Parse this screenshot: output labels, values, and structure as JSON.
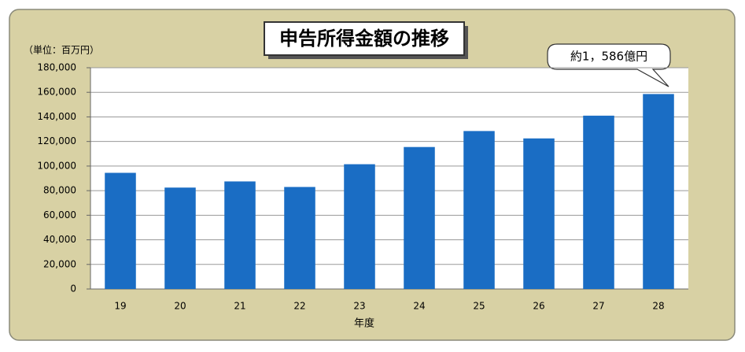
{
  "chart_data": {
    "type": "bar",
    "title": "申告所得金額の推移",
    "y_label": "（単位：百万円）",
    "x_label": "年度",
    "annotation": "約1，586億円",
    "categories": [
      "19",
      "20",
      "21",
      "22",
      "23",
      "24",
      "25",
      "26",
      "27",
      "28"
    ],
    "values": [
      94500,
      82500,
      87500,
      83000,
      101500,
      115500,
      128500,
      122500,
      141000,
      158600
    ],
    "color": "#1a6dc4",
    "ylim": [
      0,
      180000
    ],
    "yticks": [
      0,
      {
        "value": 20000,
        "label": "20,000"
      },
      {
        "value": 40000,
        "label": "40,000"
      },
      {
        "value": 60000,
        "label": "60,000"
      },
      {
        "value": 80000,
        "label": "80,000"
      },
      {
        "value": 100000,
        "label": "100,000"
      },
      {
        "value": 120000,
        "label": "120,000"
      },
      {
        "value": 140000,
        "label": "140,000"
      },
      {
        "value": 160000,
        "label": "160,000"
      },
      {
        "value": 180000,
        "label": "180,000"
      }
    ],
    "grid": true
  }
}
